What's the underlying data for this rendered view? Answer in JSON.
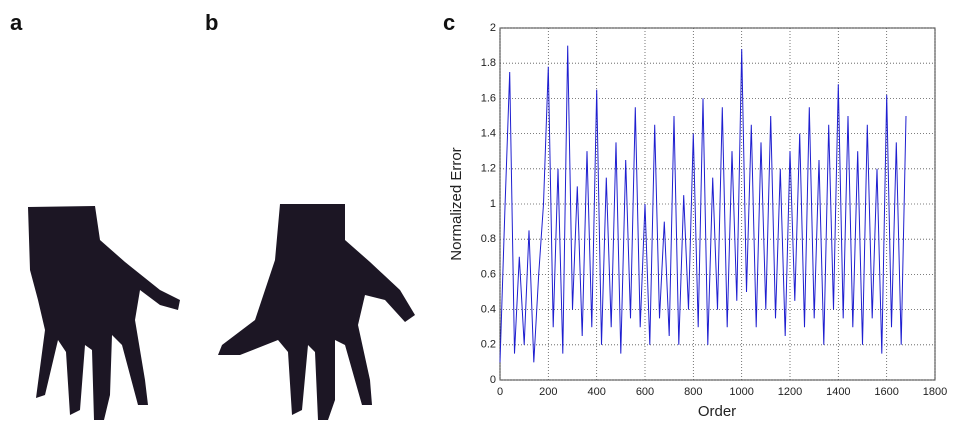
{
  "panel_labels": [
    "a",
    "b",
    "c"
  ],
  "chart_data": {
    "type": "line",
    "xlabel": "Order",
    "ylabel": "Normalized Error",
    "color": "#1f1fd0",
    "xlim": [
      0,
      1800
    ],
    "xticks": [
      0,
      200,
      400,
      600,
      800,
      1000,
      1200,
      1400,
      1600,
      1800
    ],
    "ylim": [
      0,
      2
    ],
    "yticks": [
      0,
      0.2,
      0.4,
      0.6,
      0.8,
      1,
      1.2,
      1.4,
      1.6,
      1.8,
      2
    ],
    "grid": true,
    "x": [
      0,
      20,
      40,
      60,
      80,
      100,
      120,
      140,
      160,
      180,
      200,
      220,
      240,
      260,
      280,
      300,
      320,
      340,
      360,
      380,
      400,
      420,
      440,
      460,
      480,
      500,
      520,
      540,
      560,
      580,
      600,
      620,
      640,
      660,
      680,
      700,
      720,
      740,
      760,
      780,
      800,
      820,
      840,
      860,
      880,
      900,
      920,
      940,
      960,
      980,
      1000,
      1020,
      1040,
      1060,
      1080,
      1100,
      1120,
      1140,
      1160,
      1180,
      1200,
      1220,
      1240,
      1260,
      1280,
      1300,
      1320,
      1340,
      1360,
      1380,
      1400,
      1420,
      1440,
      1460,
      1480,
      1500,
      1520,
      1540,
      1560,
      1580,
      1600,
      1620,
      1640,
      1660,
      1680
    ],
    "values": [
      0.1,
      0.95,
      1.75,
      0.15,
      0.7,
      0.2,
      0.85,
      0.1,
      0.6,
      1.0,
      1.78,
      0.3,
      1.2,
      0.15,
      1.9,
      0.4,
      1.1,
      0.25,
      1.3,
      0.3,
      1.65,
      0.2,
      1.15,
      0.3,
      1.35,
      0.15,
      1.25,
      0.35,
      1.55,
      0.3,
      1.0,
      0.2,
      1.45,
      0.35,
      0.9,
      0.25,
      1.5,
      0.2,
      1.05,
      0.4,
      1.4,
      0.3,
      1.6,
      0.2,
      1.15,
      0.4,
      1.55,
      0.3,
      1.3,
      0.45,
      1.88,
      0.5,
      1.45,
      0.3,
      1.35,
      0.4,
      1.5,
      0.35,
      1.2,
      0.25,
      1.3,
      0.45,
      1.4,
      0.3,
      1.55,
      0.35,
      1.25,
      0.2,
      1.45,
      0.4,
      1.68,
      0.35,
      1.5,
      0.3,
      1.3,
      0.2,
      1.45,
      0.35,
      1.2,
      0.15,
      1.62,
      0.3,
      1.35,
      0.2,
      1.5
    ]
  }
}
